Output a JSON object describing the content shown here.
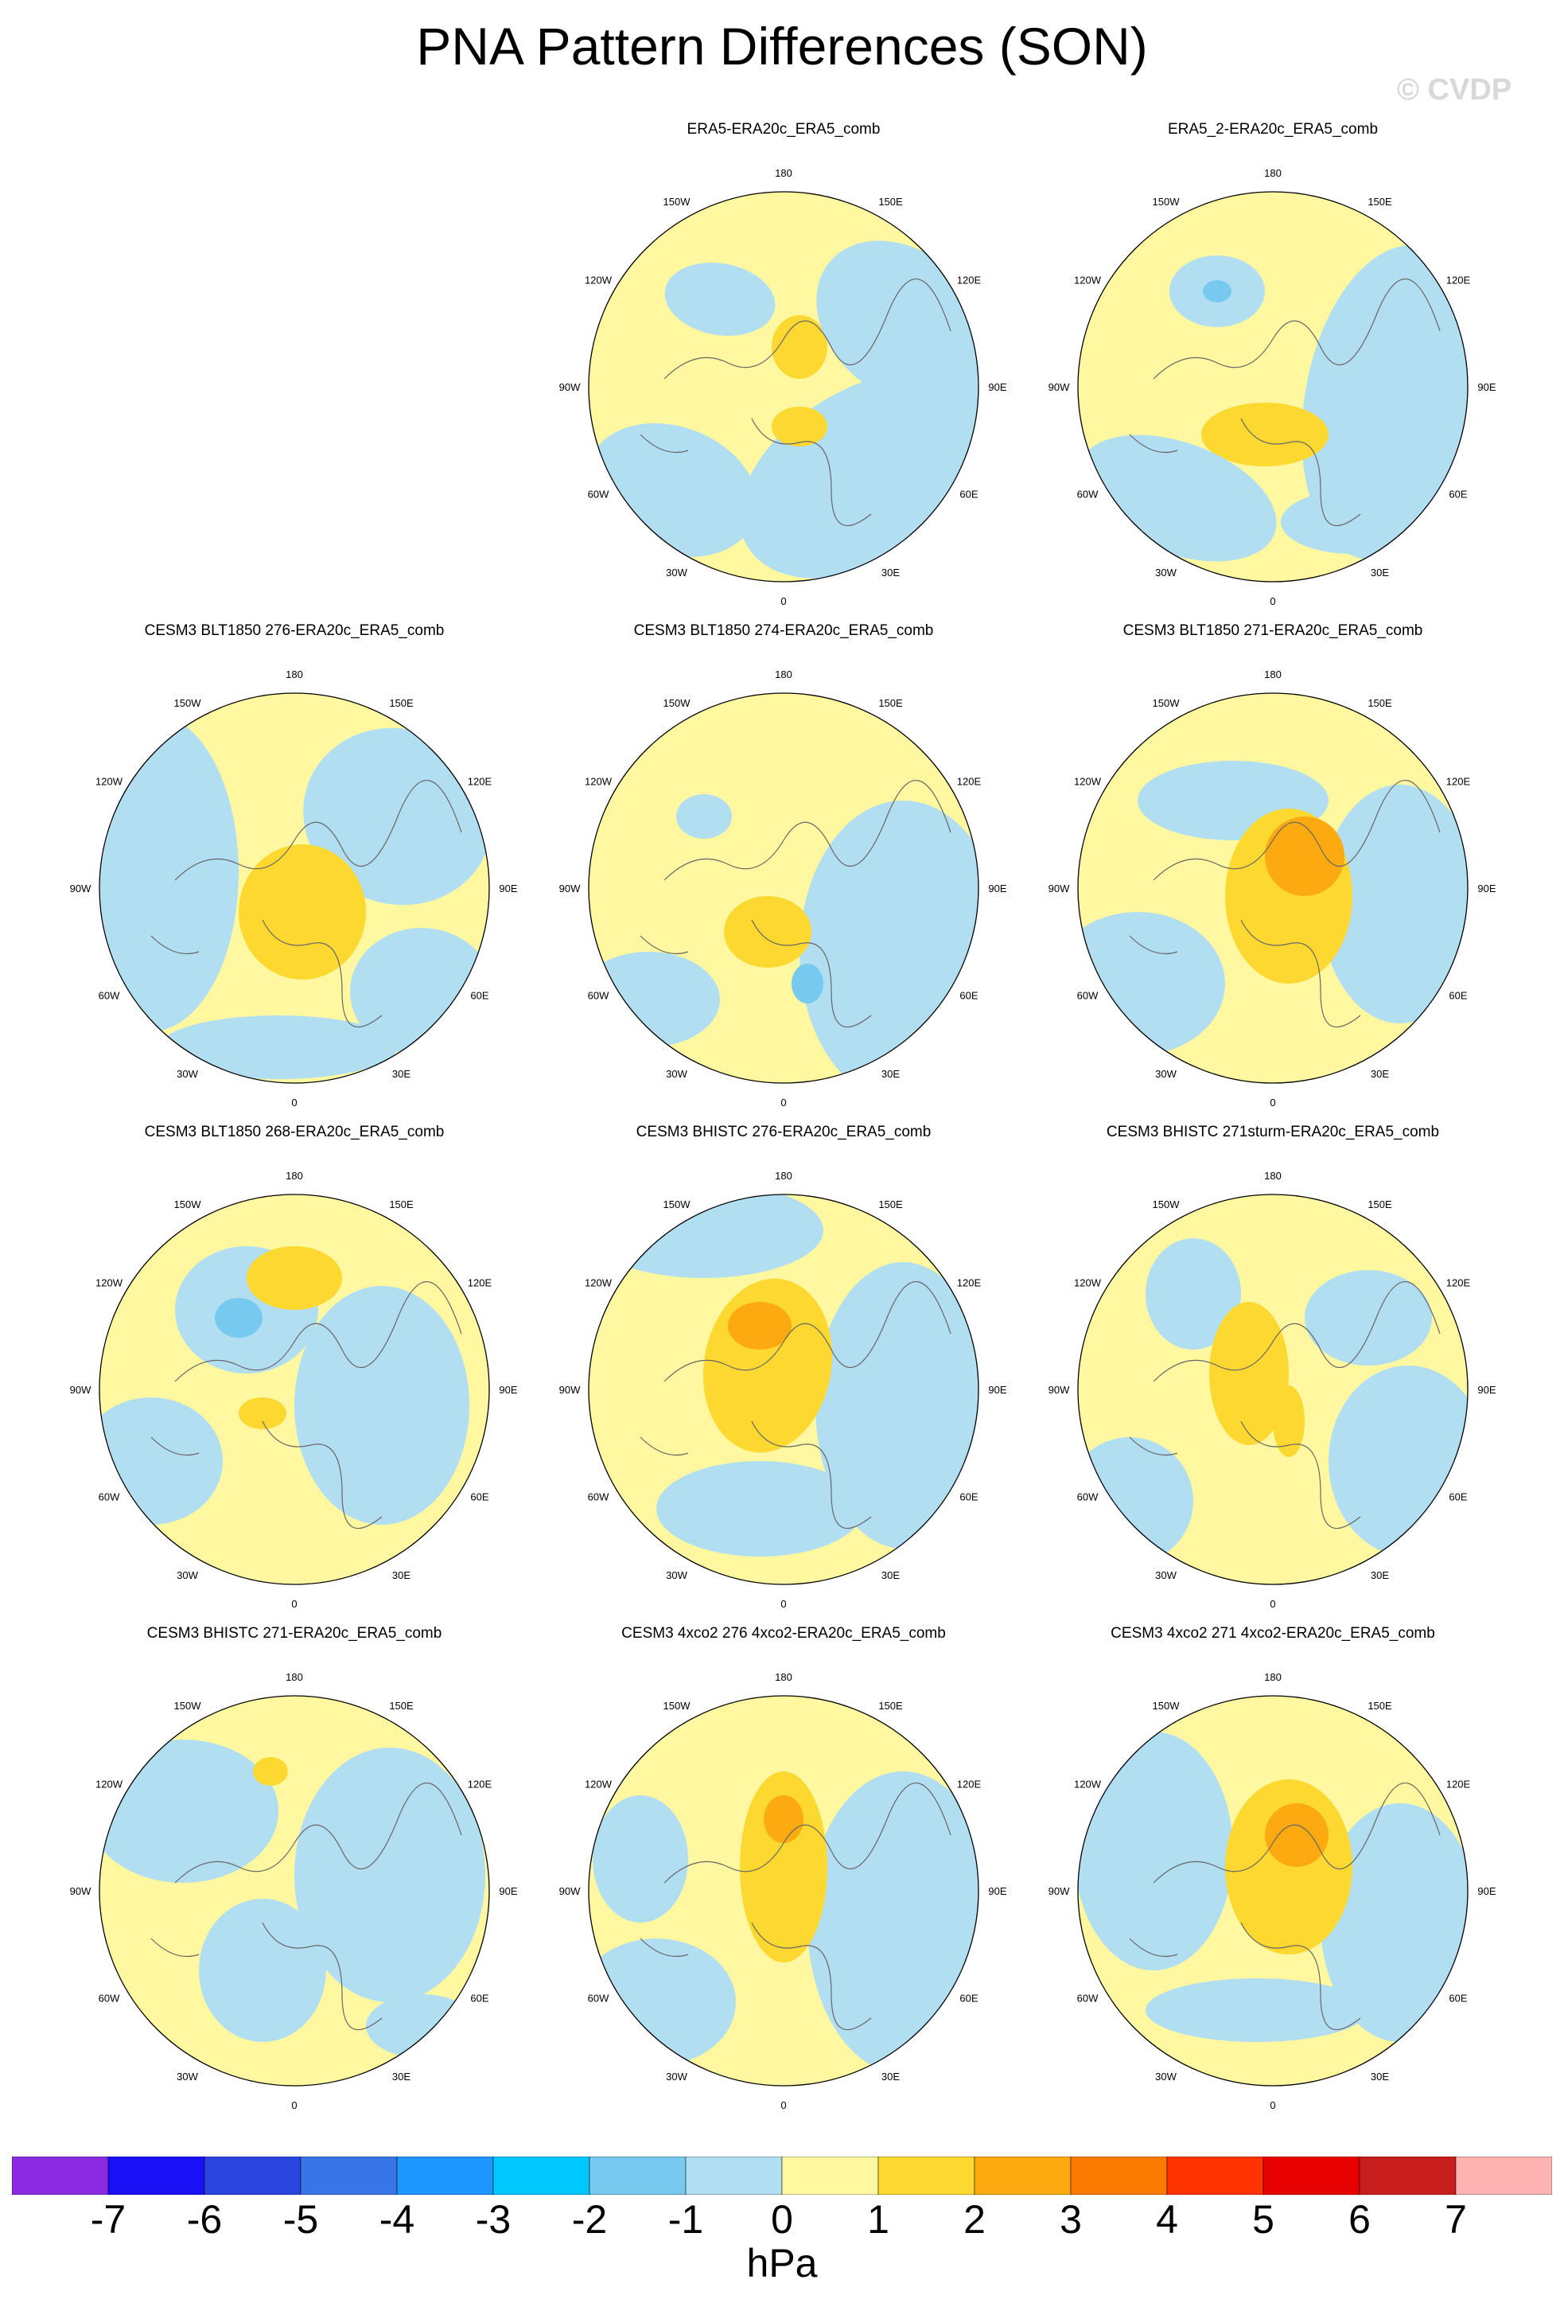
{
  "title": "PNA Pattern Differences (SON)",
  "copyright": "© CVDP",
  "panels": [
    {
      "label": "ERA5-ERA20c_ERA5_comb"
    },
    {
      "label": "ERA5_2-ERA20c_ERA5_comb"
    },
    {
      "label": "CESM3 BLT1850 276-ERA20c_ERA5_comb"
    },
    {
      "label": "CESM3 BLT1850 274-ERA20c_ERA5_comb"
    },
    {
      "label": "CESM3 BLT1850 271-ERA20c_ERA5_comb"
    },
    {
      "label": "CESM3 BLT1850 268-ERA20c_ERA5_comb"
    },
    {
      "label": "CESM3 BHISTC 276-ERA20c_ERA5_comb"
    },
    {
      "label": "CESM3 BHISTC 271sturm-ERA20c_ERA5_comb"
    },
    {
      "label": "CESM3 BHISTC 271-ERA20c_ERA5_comb"
    },
    {
      "label": "CESM3 4xco2 276 4xco2-ERA20c_ERA5_comb"
    },
    {
      "label": "CESM3 4xco2 271 4xco2-ERA20c_ERA5_comb"
    }
  ],
  "longitude_labels": [
    "180",
    "150E",
    "120E",
    "90E",
    "60E",
    "30E",
    "0",
    "30W",
    "60W",
    "90W",
    "120W",
    "150W"
  ],
  "chart_data": {
    "type": "heatmap",
    "title": "PNA Pattern Differences (SON)",
    "projection": "north polar stereographic",
    "colorbar": {
      "units": "hPa",
      "tick_labels": [
        "-7",
        "-6",
        "-5",
        "-4",
        "-3",
        "-2",
        "-1",
        "0",
        "1",
        "2",
        "3",
        "4",
        "5",
        "6",
        "7"
      ],
      "levels": [
        -7,
        -6,
        -5,
        -4,
        -3,
        -2,
        -1,
        0,
        1,
        2,
        3,
        4,
        5,
        6,
        7
      ],
      "colors": [
        "#8a2be2",
        "#1a10f5",
        "#2a45e0",
        "#3875e6",
        "#1e96ff",
        "#00c8ff",
        "#78c9f0",
        "#b2def2",
        "#fff8a0",
        "#fdd830",
        "#fcaa10",
        "#fa7a00",
        "#ff3300",
        "#e60000",
        "#c81e1e",
        "#ffb3b3"
      ]
    },
    "fill_colors": {
      "neg1": "#b2def2",
      "neg2": "#78c9f0",
      "pos1": "#fff8a0",
      "pos2": "#fdd830",
      "pos3": "#fcaa10"
    }
  }
}
